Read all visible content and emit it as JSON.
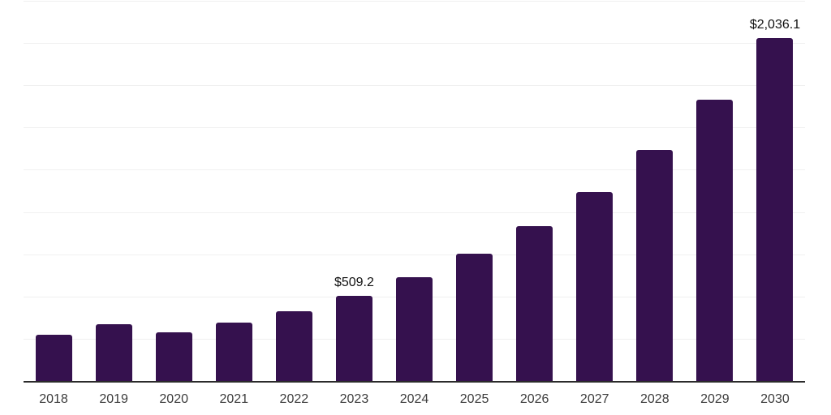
{
  "chart_data": {
    "type": "bar",
    "title": "",
    "xlabel": "",
    "ylabel": "",
    "categories": [
      "2018",
      "2019",
      "2020",
      "2021",
      "2022",
      "2023",
      "2024",
      "2025",
      "2026",
      "2027",
      "2028",
      "2029",
      "2030"
    ],
    "values": [
      280,
      341,
      294,
      351,
      417,
      509.2,
      620.7,
      756.6,
      922.3,
      1124.2,
      1370.3,
      1670.4,
      2036.1
    ],
    "data_labels": [
      null,
      null,
      null,
      null,
      null,
      "$509.2",
      null,
      null,
      null,
      null,
      null,
      null,
      "$2,036.1"
    ],
    "ylim": [
      0,
      2250
    ],
    "gridline_step": 250,
    "grid": "horizontal",
    "legend": "none",
    "colors": {
      "bar": "#35114e",
      "gridline": "#f0f0f0",
      "axis_line": "#2b2b2b",
      "x_tick_label": "#3c3c3c",
      "data_label": "#111111",
      "background": "#ffffff"
    }
  }
}
